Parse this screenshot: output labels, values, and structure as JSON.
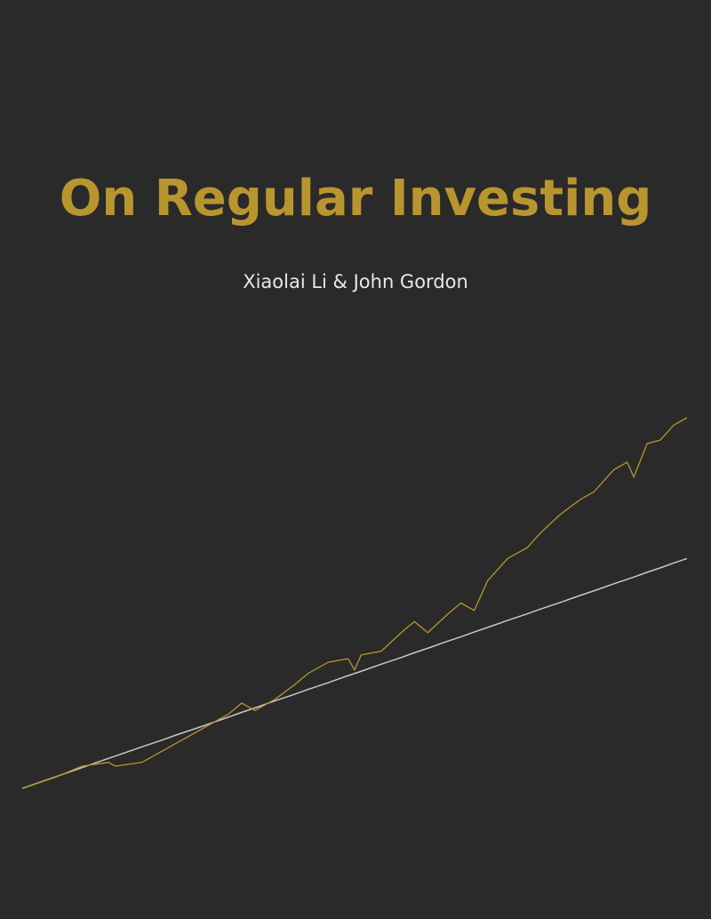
{
  "header": {
    "title": "On Regular Investing",
    "authors": "Xiaolai Li & John Gordon"
  },
  "chart_data": {
    "type": "line",
    "x": [
      0,
      5,
      9,
      13,
      14,
      18,
      21,
      23,
      27,
      31,
      33,
      35,
      38,
      41,
      43,
      46,
      49,
      50,
      51,
      54,
      57,
      59,
      61,
      64,
      66,
      68,
      70,
      73,
      76,
      78,
      81,
      84,
      86,
      89,
      91,
      92,
      94,
      96,
      98,
      100
    ],
    "series": [
      {
        "color": "#b8952e",
        "values": [
          0,
          3,
          6,
          7,
          6,
          7,
          10,
          12,
          16,
          20,
          23,
          21,
          24,
          28,
          31,
          34,
          35,
          32,
          36,
          37,
          42,
          45,
          42,
          47,
          50,
          48,
          56,
          62,
          65,
          69,
          74,
          78,
          80,
          86,
          88,
          84,
          93,
          94,
          98,
          100
        ]
      },
      {
        "color": "#c8c8c8",
        "values": [
          0,
          3.1,
          5.6,
          8.1,
          8.7,
          11.2,
          13,
          14.3,
          16.7,
          19.2,
          20.5,
          21.7,
          23.6,
          25.4,
          26.7,
          28.5,
          30.4,
          31,
          31.6,
          33.5,
          35.3,
          36.6,
          37.8,
          39.7,
          40.9,
          42.2,
          43.4,
          45.3,
          47.1,
          48.4,
          50.2,
          52.1,
          53.3,
          55.2,
          56.4,
          57,
          58.3,
          59.5,
          60.8,
          62
        ]
      }
    ],
    "xlim": [
      0,
      100
    ],
    "ylim": [
      0,
      100
    ]
  }
}
